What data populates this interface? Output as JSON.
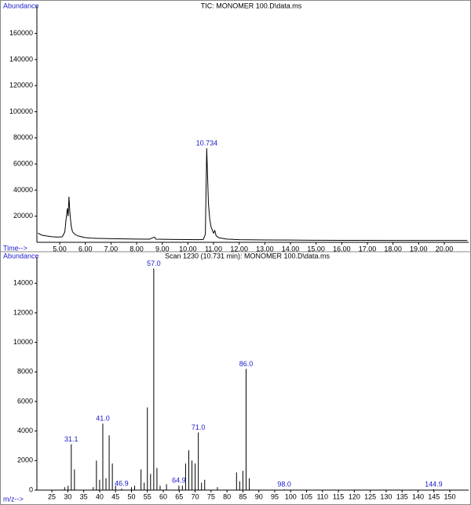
{
  "chart_data": [
    {
      "type": "line",
      "title": "TIC: MONOMER 100.D\\data.ms",
      "y_label": "Abundance",
      "x_label": "Time-->",
      "color": "#000000",
      "x": [
        4.15,
        4.3,
        4.5,
        4.7,
        4.9,
        5.1,
        5.2,
        5.25,
        5.3,
        5.33,
        5.36,
        5.4,
        5.45,
        5.5,
        5.6,
        5.7,
        5.8,
        5.9,
        6.0,
        6.2,
        6.5,
        7.0,
        7.5,
        8.0,
        8.5,
        8.7,
        8.75,
        9.0,
        9.5,
        10.0,
        10.4,
        10.6,
        10.68,
        10.734,
        10.76,
        10.8,
        10.85,
        10.9,
        11.0,
        11.05,
        11.1,
        11.2,
        11.5,
        12.0,
        13,
        14,
        15,
        16,
        17,
        18,
        19,
        20,
        20.9
      ],
      "values": [
        7000,
        5500,
        4800,
        4300,
        4000,
        4200,
        8000,
        18000,
        26000,
        20000,
        35000,
        22000,
        12000,
        8000,
        6000,
        5000,
        4500,
        4000,
        3600,
        3200,
        3000,
        2800,
        2600,
        2500,
        2400,
        4000,
        2400,
        2300,
        2200,
        2100,
        2000,
        2200,
        6000,
        72000,
        55000,
        30000,
        18000,
        12000,
        7000,
        9000,
        5000,
        3500,
        2500,
        2000,
        1800,
        1700,
        1600,
        1500,
        1500,
        1400,
        1400,
        1400,
        1400
      ],
      "xlim": [
        4.11,
        20.95
      ],
      "ylim": [
        0,
        177800
      ],
      "xticks": [
        {
          "value": 5,
          "label": "5.00"
        },
        {
          "value": 6,
          "label": "6.00"
        },
        {
          "value": 7,
          "label": "7.00"
        },
        {
          "value": 8,
          "label": "8.00"
        },
        {
          "value": 9,
          "label": "9.00"
        },
        {
          "value": 10,
          "label": "10.00"
        },
        {
          "value": 11,
          "label": "11.00"
        },
        {
          "value": 12,
          "label": "12.00"
        },
        {
          "value": 13,
          "label": "13.00"
        },
        {
          "value": 14,
          "label": "14.00"
        },
        {
          "value": 15,
          "label": "15.00"
        },
        {
          "value": 16,
          "label": "16.00"
        },
        {
          "value": 17,
          "label": "17.00"
        },
        {
          "value": 18,
          "label": "18.00"
        },
        {
          "value": 19,
          "label": "19.00"
        },
        {
          "value": 20,
          "label": "20.00"
        }
      ],
      "yticks": [
        20000,
        40000,
        60000,
        80000,
        100000,
        120000,
        140000,
        160000
      ],
      "annotations": [
        {
          "x": 10.734,
          "y": 72000,
          "label": "10.734"
        }
      ]
    },
    {
      "type": "bar",
      "title": "Scan 1230 (10.731 min): MONOMER 100.D\\data.ms",
      "y_label": "Abundance",
      "x_label": "m/z-->",
      "color": "#000000",
      "x": [
        29,
        30.1,
        31.1,
        32.1,
        38,
        39,
        40,
        41.0,
        42,
        43,
        44,
        45,
        46.9,
        50,
        51,
        53,
        54,
        55,
        56,
        57.0,
        58,
        59,
        61,
        64.9,
        66,
        67,
        68,
        69,
        70,
        71.0,
        72,
        73,
        77,
        83,
        84,
        85,
        86.0,
        87,
        98.0,
        144.9
      ],
      "values": [
        200,
        300,
        3100,
        1400,
        200,
        2000,
        700,
        4500,
        800,
        3700,
        1800,
        300,
        100,
        200,
        300,
        1400,
        500,
        5600,
        1100,
        15000,
        1500,
        300,
        400,
        300,
        300,
        1800,
        2700,
        2000,
        1800,
        3900,
        500,
        700,
        200,
        1200,
        600,
        1300,
        8200,
        800,
        50,
        50
      ],
      "xlim": [
        20.3,
        155.9
      ],
      "ylim": [
        0,
        15500
      ],
      "xticks": [
        25,
        30,
        35,
        40,
        45,
        50,
        55,
        60,
        65,
        70,
        75,
        80,
        85,
        90,
        95,
        100,
        105,
        110,
        115,
        120,
        125,
        130,
        135,
        140,
        145,
        150
      ],
      "yticks": [
        0,
        2000,
        4000,
        6000,
        8000,
        10000,
        12000,
        14000
      ],
      "annotations": [
        {
          "x": 31.1,
          "label": "31.1"
        },
        {
          "x": 41.0,
          "label": "41.0"
        },
        {
          "x": 46.9,
          "label": "46.9"
        },
        {
          "x": 57.0,
          "label": "57.0"
        },
        {
          "x": 64.9,
          "label": "64.9"
        },
        {
          "x": 71.0,
          "label": "71.0"
        },
        {
          "x": 86.0,
          "label": "86.0"
        },
        {
          "x": 98.0,
          "label": "98.0"
        },
        {
          "x": 144.9,
          "label": "144.9"
        }
      ]
    }
  ]
}
